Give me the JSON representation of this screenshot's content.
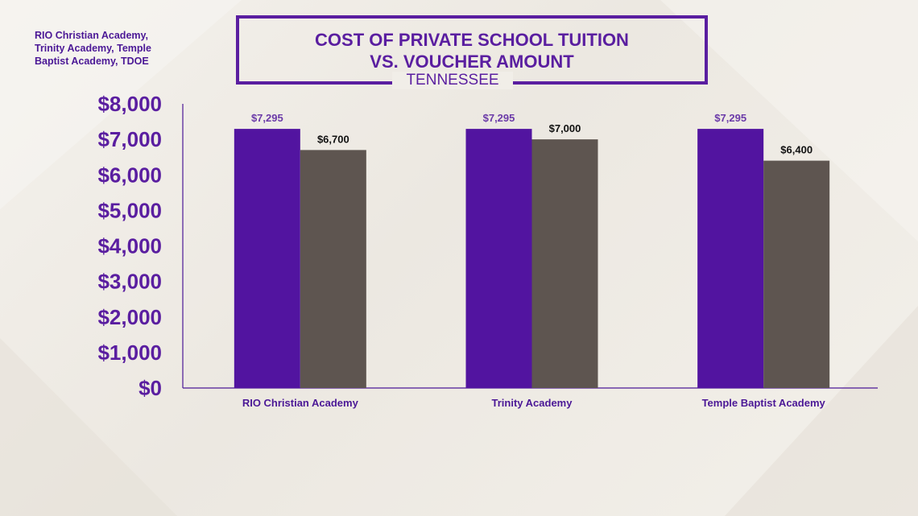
{
  "source": "RIO Christian Academy, Trinity Academy, Temple Baptist Academy, TDOE",
  "title_lines": [
    "COST OF PRIVATE SCHOOL TUITION",
    "VS. VOUCHER AMOUNT"
  ],
  "subtitle": "TENNESSEE",
  "colors": {
    "accent": "#5a1ea0",
    "series1": "#5214a0",
    "series2": "#5e5550",
    "label1": "#6b3aa8",
    "label2": "#111111"
  },
  "chart_data": {
    "type": "bar",
    "title": "COST OF PRIVATE SCHOOL TUITION VS. VOUCHER AMOUNT",
    "subtitle": "TENNESSEE",
    "categories": [
      "RIO Christian Academy",
      "Trinity Academy",
      "Temple Baptist Academy"
    ],
    "series": [
      {
        "values": [
          7295,
          7295,
          7295
        ],
        "labels": [
          "$7,295",
          "$7,295",
          "$7,295"
        ]
      },
      {
        "values": [
          6700,
          7000,
          6400
        ],
        "labels": [
          "$6,700",
          "$7,000",
          "$6,400"
        ]
      }
    ],
    "ylim": [
      0,
      8000
    ],
    "yticks": [
      0,
      1000,
      2000,
      3000,
      4000,
      5000,
      6000,
      7000,
      8000
    ],
    "ytick_labels": [
      "$0",
      "$1,000",
      "$2,000",
      "$3,000",
      "$4,000",
      "$5,000",
      "$6,000",
      "$7,000",
      "$8,000"
    ],
    "grid": false,
    "legend": "none"
  }
}
